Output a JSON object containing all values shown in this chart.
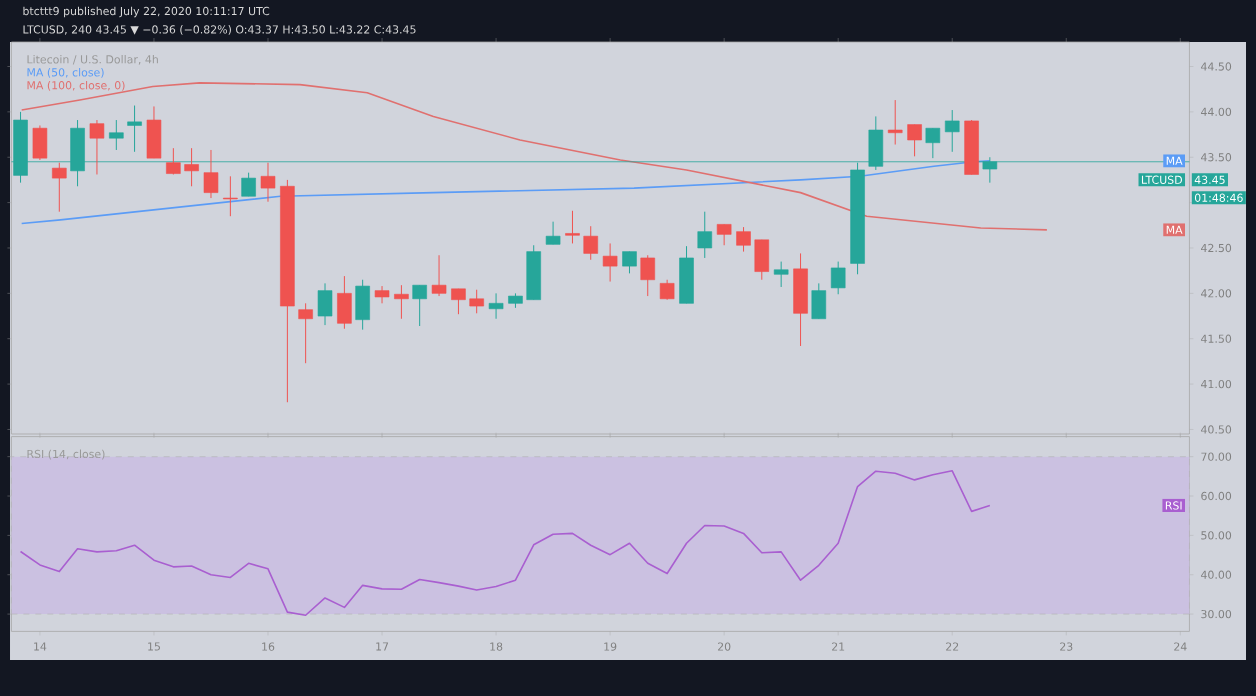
{
  "chart_data": [
    {
      "type": "candlestick",
      "title": "Litecoin / U.S. Dollar, 4h",
      "x": [
        13.83,
        14.0,
        14.17,
        14.33,
        14.5,
        14.67,
        14.83,
        15.0,
        15.17,
        15.33,
        15.5,
        15.67,
        15.83,
        16.0,
        16.17,
        16.33,
        16.5,
        16.67,
        16.83,
        17.0,
        17.17,
        17.33,
        17.5,
        17.67,
        17.83,
        18.0,
        18.17,
        18.33,
        18.5,
        18.67,
        18.83,
        19.0,
        19.17,
        19.33,
        19.5,
        19.67,
        19.83,
        20.0,
        20.17,
        20.33,
        20.5,
        20.67,
        20.83,
        21.0,
        21.17,
        21.33,
        21.5,
        21.67,
        21.83,
        22.0,
        22.17,
        22.33
      ],
      "ohlc": [
        [
          43.3,
          44.0,
          43.22,
          43.91
        ],
        [
          43.82,
          43.85,
          43.47,
          43.49
        ],
        [
          43.38,
          43.44,
          42.9,
          43.27
        ],
        [
          43.35,
          43.91,
          43.18,
          43.82
        ],
        [
          43.87,
          43.91,
          43.31,
          43.71
        ],
        [
          43.71,
          43.91,
          43.58,
          43.77
        ],
        [
          43.85,
          44.07,
          43.56,
          43.89
        ],
        [
          43.91,
          44.06,
          43.49,
          43.49
        ],
        [
          43.44,
          43.6,
          43.31,
          43.32
        ],
        [
          43.42,
          43.6,
          43.18,
          43.35
        ],
        [
          43.33,
          43.58,
          43.05,
          43.11
        ],
        [
          43.05,
          43.29,
          42.85,
          43.04
        ],
        [
          43.07,
          43.33,
          43.07,
          43.27
        ],
        [
          43.29,
          43.44,
          43.01,
          43.16
        ],
        [
          43.18,
          43.25,
          40.8,
          41.86
        ],
        [
          41.82,
          41.89,
          41.23,
          41.72
        ],
        [
          41.75,
          42.11,
          41.65,
          42.03
        ],
        [
          42.0,
          42.19,
          41.61,
          41.67
        ],
        [
          41.71,
          42.15,
          41.6,
          42.08
        ],
        [
          42.03,
          42.08,
          41.89,
          41.96
        ],
        [
          41.99,
          42.09,
          41.72,
          41.94
        ],
        [
          41.94,
          42.09,
          41.64,
          42.09
        ],
        [
          42.09,
          42.42,
          41.97,
          42.0
        ],
        [
          42.05,
          42.05,
          41.77,
          41.93
        ],
        [
          41.94,
          42.04,
          41.78,
          41.86
        ],
        [
          41.83,
          42.0,
          41.72,
          41.89
        ],
        [
          41.89,
          42.0,
          41.84,
          41.97
        ],
        [
          41.93,
          42.53,
          41.93,
          42.46
        ],
        [
          42.54,
          42.79,
          42.54,
          42.63
        ],
        [
          42.66,
          42.91,
          42.55,
          42.64
        ],
        [
          42.63,
          42.74,
          42.37,
          42.44
        ],
        [
          42.41,
          42.55,
          42.13,
          42.3
        ],
        [
          42.3,
          42.46,
          42.22,
          42.46
        ],
        [
          42.39,
          42.42,
          41.97,
          42.15
        ],
        [
          42.11,
          42.15,
          41.93,
          41.94
        ],
        [
          41.89,
          42.52,
          41.89,
          42.39
        ],
        [
          42.5,
          42.9,
          42.39,
          42.68
        ],
        [
          42.76,
          42.76,
          42.53,
          42.65
        ],
        [
          42.68,
          42.73,
          42.46,
          42.53
        ],
        [
          42.59,
          42.59,
          42.15,
          42.24
        ],
        [
          42.21,
          42.35,
          42.07,
          42.26
        ],
        [
          42.27,
          42.44,
          41.42,
          41.78
        ],
        [
          41.72,
          42.11,
          41.72,
          42.03
        ],
        [
          42.06,
          42.35,
          41.99,
          42.28
        ],
        [
          42.33,
          43.44,
          42.21,
          43.36
        ],
        [
          43.4,
          43.95,
          43.36,
          43.8
        ],
        [
          43.8,
          44.13,
          43.64,
          43.77
        ],
        [
          43.86,
          43.86,
          43.51,
          43.69
        ],
        [
          43.66,
          43.82,
          43.49,
          43.82
        ],
        [
          43.78,
          44.02,
          43.56,
          43.9
        ],
        [
          43.9,
          43.91,
          43.31,
          43.31
        ],
        [
          43.37,
          43.5,
          43.22,
          43.45
        ]
      ],
      "colors": [
        "#26a69a",
        "#ef5350",
        "#ef5350",
        "#26a69a",
        "#ef5350",
        "#26a69a",
        "#26a69a",
        "#ef5350",
        "#ef5350",
        "#ef5350",
        "#ef5350",
        "#ef5350",
        "#26a69a",
        "#ef5350",
        "#ef5350",
        "#ef5350",
        "#26a69a",
        "#ef5350",
        "#26a69a",
        "#ef5350",
        "#ef5350",
        "#26a69a",
        "#ef5350",
        "#ef5350",
        "#ef5350",
        "#26a69a",
        "#26a69a",
        "#26a69a",
        "#26a69a",
        "#ef5350",
        "#ef5350",
        "#ef5350",
        "#26a69a",
        "#ef5350",
        "#ef5350",
        "#26a69a",
        "#26a69a",
        "#ef5350",
        "#ef5350",
        "#ef5350",
        "#26a69a",
        "#ef5350",
        "#26a69a",
        "#26a69a",
        "#26a69a",
        "#26a69a",
        "#ef5350",
        "#ef5350",
        "#26a69a",
        "#26a69a",
        "#ef5350",
        "#26a69a"
      ],
      "series": [
        {
          "name": "MA (50, close)",
          "type": "line",
          "color": "#5b9cf6",
          "x": [
            13.84,
            14.18,
            16.11,
            17.45,
            19.21,
            20.67,
            21.19,
            21.84,
            22.19,
            22.33
          ],
          "values": [
            42.77,
            42.81,
            43.07,
            43.11,
            43.16,
            43.25,
            43.29,
            43.4,
            43.45,
            43.46
          ]
        },
        {
          "name": "MA (100, close, 0)",
          "type": "line",
          "color": "#e0706f",
          "x": [
            13.84,
            14.35,
            14.99,
            15.4,
            16.28,
            16.87,
            17.45,
            18.21,
            19.09,
            19.67,
            20.67,
            21.25,
            22.25,
            22.83
          ],
          "values": [
            44.02,
            44.13,
            44.28,
            44.32,
            44.3,
            44.21,
            43.95,
            43.69,
            43.47,
            43.36,
            43.11,
            42.85,
            42.72,
            42.7
          ]
        }
      ],
      "xlim": [
        13.75,
        24.08
      ],
      "xticks": [
        14,
        15,
        16,
        17,
        18,
        19,
        20,
        21,
        22,
        23,
        24
      ],
      "ylim": [
        40.45,
        44.77
      ],
      "yticks": [
        {
          "value": 40.5,
          "label": "40.50"
        },
        {
          "value": 41,
          "label": "41.00"
        },
        {
          "value": 41.5,
          "label": "41.50"
        },
        {
          "value": 42,
          "label": "42.00"
        },
        {
          "value": 42.5,
          "label": "42.50"
        },
        {
          "value": 43,
          "label": null
        },
        {
          "value": 43.5,
          "label": "43.50"
        },
        {
          "value": 44,
          "label": "44.00"
        },
        {
          "value": 44.5,
          "label": "44.50"
        }
      ],
      "tick_labels": "y",
      "ref_lines": [
        {
          "axis": "y",
          "value": 43.45,
          "label": "43.45",
          "color": "#26a69a"
        }
      ],
      "annotations": [
        "btcttt9 published July 22, 2020 10:11:17 UTC",
        "LTCUSD, 240 43.45 ▼ −0.36 (−0.82%) O:43.37 H:43.50 L:43.22 C:43.45",
        "LTCUSD",
        "01:48:46",
        "MA",
        "MA"
      ]
    },
    {
      "type": "line",
      "title": "RSI (14, close)",
      "x": [
        13.83,
        14.0,
        14.17,
        14.33,
        14.5,
        14.67,
        14.83,
        15.0,
        15.17,
        15.33,
        15.5,
        15.67,
        15.83,
        16.0,
        16.17,
        16.33,
        16.5,
        16.67,
        16.83,
        17.0,
        17.17,
        17.33,
        17.5,
        17.67,
        17.83,
        18.0,
        18.17,
        18.33,
        18.5,
        18.67,
        18.83,
        19.0,
        19.17,
        19.33,
        19.5,
        19.67,
        19.83,
        20.0,
        20.17,
        20.33,
        20.5,
        20.67,
        20.83,
        21.0,
        21.17,
        21.33,
        21.5,
        21.67,
        21.83,
        22.0,
        22.17,
        22.33
      ],
      "series": [
        {
          "name": "RSI",
          "color": "#a95fd0",
          "values": [
            45.9,
            42.5,
            40.8,
            46.6,
            45.8,
            46.1,
            47.5,
            43.7,
            42.0,
            42.2,
            40.0,
            39.3,
            42.9,
            41.5,
            30.5,
            29.7,
            34.1,
            31.7,
            37.3,
            36.4,
            36.3,
            38.8,
            38.0,
            37.1,
            36.1,
            37.0,
            38.6,
            47.6,
            50.3,
            50.5,
            47.5,
            45.1,
            48.0,
            42.9,
            40.3,
            48.0,
            52.5,
            52.4,
            50.5,
            45.6,
            45.8,
            38.6,
            42.4,
            48.0,
            62.4,
            66.3,
            65.8,
            64.1,
            65.4,
            66.4,
            56.1,
            57.6
          ]
        }
      ],
      "xlim": [
        13.75,
        24.08
      ],
      "xticks": [
        14,
        15,
        16,
        17,
        18,
        19,
        20,
        21,
        22,
        23,
        24
      ],
      "ylim": [
        25.6,
        75.1
      ],
      "yticks": [
        {
          "value": 30,
          "label": "30.00"
        },
        {
          "value": 40,
          "label": "40.00"
        },
        {
          "value": 50,
          "label": "50.00"
        },
        {
          "value": 60,
          "label": "60.00"
        },
        {
          "value": 70,
          "label": "70.00"
        }
      ],
      "bands": [
        {
          "axis": "y",
          "from": 30,
          "to": 70,
          "color": "#cbc1e1"
        }
      ]
    }
  ]
}
